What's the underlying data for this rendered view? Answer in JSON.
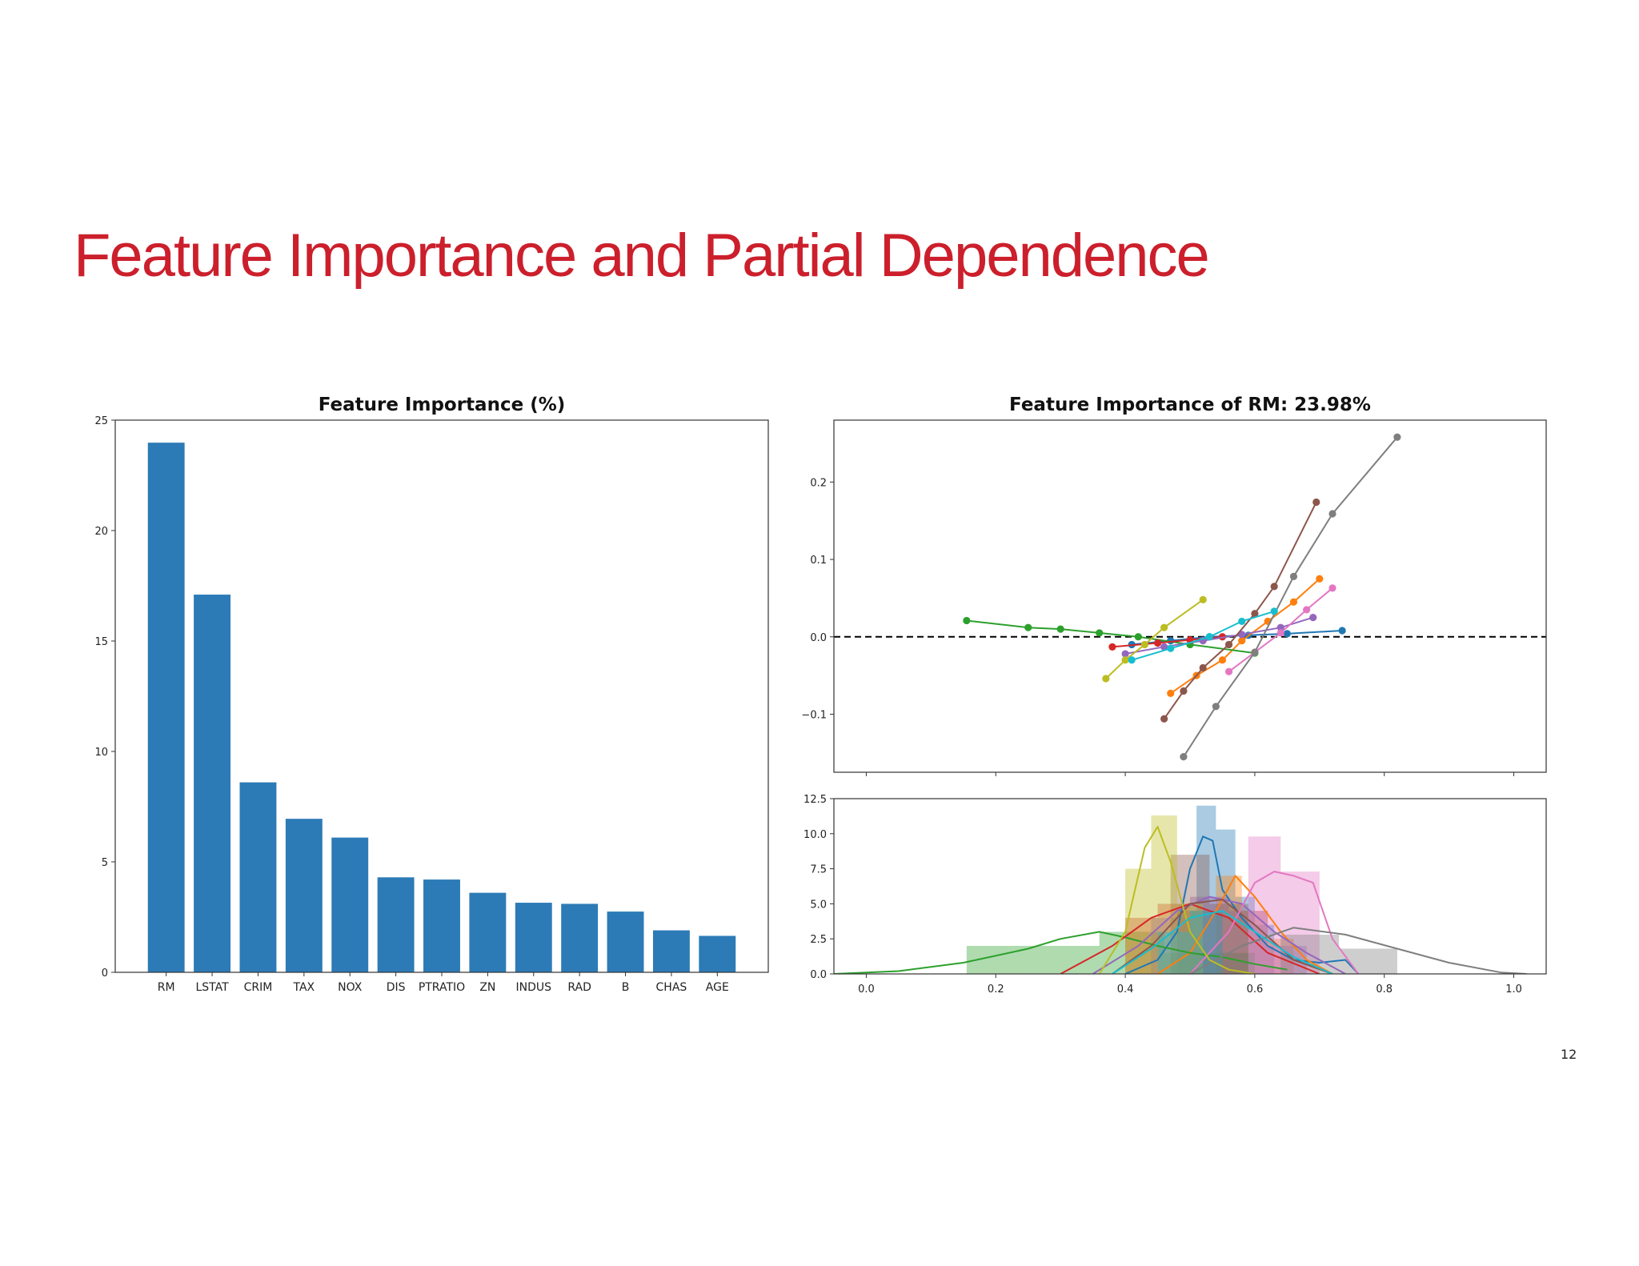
{
  "slide": {
    "title": "Feature Importance and Partial Dependence",
    "page_number": "12",
    "title_color": "#cc1f2c"
  },
  "chart_data": [
    {
      "type": "bar",
      "title": "Feature Importance (%)",
      "xlabel": "",
      "ylabel": "",
      "categories": [
        "RM",
        "LSTAT",
        "CRIM",
        "TAX",
        "NOX",
        "DIS",
        "PTRATIO",
        "ZN",
        "INDUS",
        "RAD",
        "B",
        "CHAS",
        "AGE"
      ],
      "values": [
        23.98,
        17.1,
        8.6,
        6.95,
        6.1,
        4.3,
        4.2,
        3.6,
        3.15,
        3.1,
        2.75,
        1.9,
        1.65
      ],
      "ylim": [
        0,
        25
      ],
      "yticks": [
        0,
        5,
        10,
        15,
        20,
        25
      ],
      "bar_color": "#2c7bb6",
      "grid": false
    },
    {
      "type": "line",
      "title": "Feature Importance of RM: 23.98%",
      "xlabel": "",
      "ylabel": "",
      "xlim": [
        -0.05,
        1.05
      ],
      "ylim": [
        -0.175,
        0.28
      ],
      "xticks": [
        0.0,
        0.2,
        0.4,
        0.6,
        0.8,
        1.0
      ],
      "yticks": [
        -0.1,
        0.0,
        0.1,
        0.2
      ],
      "ytick_labels": [
        "−0.1",
        "0.0",
        "0.1",
        "0.2"
      ],
      "reference_line": {
        "y": 0.0,
        "style": "dashed",
        "color": "#000000"
      },
      "grid": false,
      "series": [
        {
          "color": "#1f77b4",
          "x": [
            0.41,
            0.47,
            0.53,
            0.59,
            0.65,
            0.735
          ],
          "y": [
            -0.01,
            -0.005,
            0.0,
            0.002,
            0.004,
            0.008
          ]
        },
        {
          "color": "#ff7f0e",
          "x": [
            0.47,
            0.51,
            0.55,
            0.58,
            0.62,
            0.66,
            0.7
          ],
          "y": [
            -0.073,
            -0.05,
            -0.03,
            -0.005,
            0.02,
            0.045,
            0.075
          ]
        },
        {
          "color": "#2ca02c",
          "x": [
            0.155,
            0.25,
            0.3,
            0.36,
            0.42,
            0.5,
            0.6
          ],
          "y": [
            0.021,
            0.012,
            0.01,
            0.005,
            0.0,
            -0.01,
            -0.021
          ]
        },
        {
          "color": "#d62728",
          "x": [
            0.38,
            0.45,
            0.5,
            0.55
          ],
          "y": [
            -0.013,
            -0.008,
            -0.004,
            0.0
          ]
        },
        {
          "color": "#9467bd",
          "x": [
            0.4,
            0.46,
            0.52,
            0.58,
            0.64,
            0.69
          ],
          "y": [
            -0.022,
            -0.013,
            -0.005,
            0.003,
            0.012,
            0.025
          ]
        },
        {
          "color": "#8c564b",
          "x": [
            0.46,
            0.49,
            0.52,
            0.56,
            0.6,
            0.63,
            0.695
          ],
          "y": [
            -0.106,
            -0.07,
            -0.04,
            -0.01,
            0.03,
            0.065,
            0.174
          ]
        },
        {
          "color": "#e377c2",
          "x": [
            0.56,
            0.6,
            0.64,
            0.68,
            0.72
          ],
          "y": [
            -0.045,
            -0.02,
            0.005,
            0.035,
            0.063
          ]
        },
        {
          "color": "#7f7f7f",
          "x": [
            0.49,
            0.54,
            0.6,
            0.66,
            0.72,
            0.82
          ],
          "y": [
            -0.155,
            -0.09,
            -0.02,
            0.078,
            0.159,
            0.258
          ]
        },
        {
          "color": "#bcbd22",
          "x": [
            0.37,
            0.4,
            0.43,
            0.46,
            0.52
          ],
          "y": [
            -0.054,
            -0.03,
            -0.01,
            0.012,
            0.048
          ]
        },
        {
          "color": "#17becf",
          "x": [
            0.41,
            0.47,
            0.53,
            0.58,
            0.63
          ],
          "y": [
            -0.03,
            -0.015,
            0.0,
            0.02,
            0.033
          ]
        }
      ]
    },
    {
      "type": "area",
      "title": "",
      "xlabel": "",
      "ylabel": "",
      "xlim": [
        -0.05,
        1.05
      ],
      "ylim": [
        0,
        12.5
      ],
      "xticks": [
        0.0,
        0.2,
        0.4,
        0.6,
        0.8,
        1.0
      ],
      "yticks": [
        0.0,
        2.5,
        5.0,
        7.5,
        10.0,
        12.5
      ],
      "grid": false,
      "series": [
        {
          "color": "#1f77b4",
          "hist": [
            [
              0.48,
              0.51,
              4.5
            ],
            [
              0.51,
              0.54,
              12
            ],
            [
              0.54,
              0.57,
              10.3
            ],
            [
              0.57,
              0.6,
              5.5
            ],
            [
              0.6,
              0.63,
              3.5
            ]
          ],
          "kde_x": [
            0.4,
            0.45,
            0.48,
            0.5,
            0.52,
            0.535,
            0.55,
            0.58,
            0.62,
            0.66,
            0.7,
            0.74,
            0.76
          ],
          "kde_y": [
            0,
            1,
            3,
            7.5,
            9.8,
            9.5,
            6,
            4,
            2,
            1,
            0.8,
            1,
            0
          ]
        },
        {
          "color": "#ff7f0e",
          "hist": [
            [
              0.54,
              0.58,
              7
            ],
            [
              0.58,
              0.62,
              4.5
            ],
            [
              0.62,
              0.66,
              2.5
            ]
          ],
          "kde_x": [
            0.45,
            0.5,
            0.54,
            0.57,
            0.6,
            0.64,
            0.68,
            0.72
          ],
          "kde_y": [
            0,
            1.5,
            4.5,
            7,
            5.5,
            3,
            1,
            0
          ]
        },
        {
          "color": "#2ca02c",
          "hist": [
            [
              0.155,
              0.25,
              2
            ],
            [
              0.25,
              0.36,
              2
            ],
            [
              0.36,
              0.46,
              3
            ],
            [
              0.46,
              0.6,
              1.5
            ]
          ],
          "kde_x": [
            -0.05,
            0.05,
            0.15,
            0.25,
            0.3,
            0.36,
            0.4,
            0.45,
            0.5,
            0.55,
            0.6,
            0.65
          ],
          "kde_y": [
            0,
            0.2,
            0.8,
            1.8,
            2.5,
            3,
            2.6,
            2,
            1.5,
            1.2,
            0.7,
            0.3
          ]
        },
        {
          "color": "#d62728",
          "hist": [
            [
              0.4,
              0.45,
              4
            ],
            [
              0.45,
              0.5,
              5
            ],
            [
              0.5,
              0.55,
              4.5
            ]
          ],
          "kde_x": [
            0.3,
            0.38,
            0.44,
            0.5,
            0.56,
            0.62,
            0.7
          ],
          "kde_y": [
            0,
            2,
            4,
            5,
            4,
            1.5,
            0
          ]
        },
        {
          "color": "#9467bd",
          "hist": [
            [
              0.44,
              0.5,
              4
            ],
            [
              0.5,
              0.56,
              5.5
            ],
            [
              0.56,
              0.62,
              4.5
            ],
            [
              0.62,
              0.68,
              2
            ]
          ],
          "kde_x": [
            0.35,
            0.42,
            0.48,
            0.53,
            0.58,
            0.63,
            0.68,
            0.74
          ],
          "kde_y": [
            0,
            2,
            4.5,
            5.5,
            5,
            3,
            1.5,
            0
          ]
        },
        {
          "color": "#8c564b",
          "hist": [
            [
              0.47,
              0.53,
              8.5
            ],
            [
              0.53,
              0.59,
              5
            ]
          ],
          "kde_x": [
            0.38,
            0.44,
            0.5,
            0.55,
            0.6,
            0.66,
            0.72
          ],
          "kde_y": [
            0,
            2,
            5,
            5.3,
            3.5,
            1,
            0
          ]
        },
        {
          "color": "#e377c2",
          "hist": [
            [
              0.59,
              0.64,
              9.8
            ],
            [
              0.64,
              0.7,
              7.3
            ]
          ],
          "kde_x": [
            0.5,
            0.56,
            0.6,
            0.63,
            0.66,
            0.69,
            0.72,
            0.76
          ],
          "kde_y": [
            0,
            3,
            6.5,
            7.3,
            7,
            6.5,
            2.5,
            0
          ]
        },
        {
          "color": "#7f7f7f",
          "hist": [
            [
              0.64,
              0.73,
              2.8
            ],
            [
              0.73,
              0.82,
              1.8
            ]
          ],
          "kde_x": [
            0.5,
            0.58,
            0.66,
            0.74,
            0.82,
            0.9,
            0.98,
            1.02
          ],
          "kde_y": [
            0,
            2,
            3.3,
            2.8,
            1.8,
            0.8,
            0.1,
            0
          ]
        },
        {
          "color": "#bcbd22",
          "hist": [
            [
              0.4,
              0.44,
              7.5
            ],
            [
              0.44,
              0.48,
              11.3
            ],
            [
              0.48,
              0.52,
              5
            ]
          ],
          "kde_x": [
            0.36,
            0.4,
            0.43,
            0.45,
            0.47,
            0.5,
            0.53,
            0.56,
            0.6
          ],
          "kde_y": [
            0,
            3,
            9,
            10.5,
            8,
            3,
            1,
            0.3,
            0
          ]
        },
        {
          "color": "#17becf",
          "hist": [
            [
              0.45,
              0.5,
              3
            ],
            [
              0.5,
              0.55,
              4.5
            ]
          ],
          "kde_x": [
            0.38,
            0.44,
            0.5,
            0.55,
            0.6,
            0.66,
            0.72
          ],
          "kde_y": [
            0,
            1.8,
            4,
            4.5,
            3,
            1.2,
            0
          ]
        }
      ]
    }
  ]
}
